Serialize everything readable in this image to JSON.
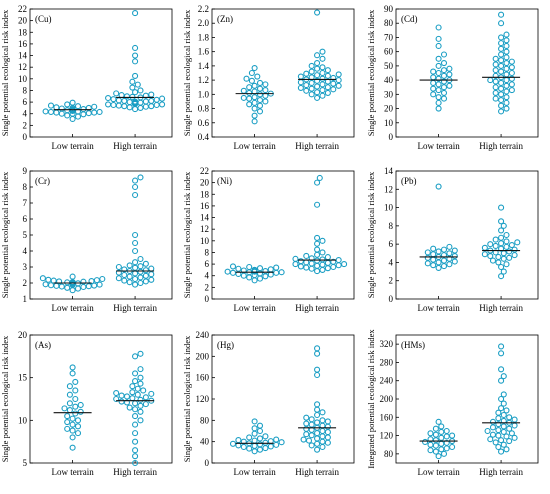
{
  "style": {
    "point_color": "#1a9ec4",
    "axis_color": "#000000"
  },
  "chart_data": [
    {
      "type": "scatter",
      "tag": "(Cu)",
      "ylabel": "Single potential ecological risk index",
      "categories": [
        "Low terrain",
        "High terrain"
      ],
      "ylim": [
        0,
        22
      ],
      "yticks": [
        0,
        2,
        4,
        6,
        8,
        10,
        12,
        14,
        16,
        18,
        20,
        22
      ],
      "means": [
        4.7,
        6.8
      ],
      "series": [
        {
          "values": [
            3.1,
            3.5,
            3.7,
            3.9,
            4.0,
            4.0,
            4.1,
            4.2,
            4.2,
            4.3,
            4.3,
            4.4,
            4.4,
            4.5,
            4.5,
            4.6,
            4.6,
            4.7,
            4.7,
            4.8,
            4.8,
            4.9,
            5.0,
            5.0,
            5.1,
            5.2,
            5.3,
            5.4,
            5.6,
            5.9
          ]
        },
        {
          "values": [
            4.8,
            5.0,
            5.1,
            5.2,
            5.3,
            5.3,
            5.4,
            5.5,
            5.5,
            5.6,
            5.6,
            5.7,
            5.7,
            5.8,
            5.8,
            5.9,
            5.9,
            6.0,
            6.0,
            6.1,
            6.1,
            6.2,
            6.2,
            6.3,
            6.4,
            6.5,
            6.6,
            6.7,
            6.8,
            6.9,
            7.0,
            7.1,
            7.2,
            7.3,
            7.5,
            7.7,
            8.0,
            8.5,
            9.0,
            9.5,
            10.5,
            13.0,
            14.0,
            15.3,
            21.3
          ]
        }
      ]
    },
    {
      "type": "scatter",
      "tag": "(Zn)",
      "ylabel": "Single potential ecological risk index",
      "categories": [
        "Low terrain",
        "High terrain"
      ],
      "ylim": [
        0.4,
        2.2
      ],
      "yticks": [
        0.4,
        0.6,
        0.8,
        1.0,
        1.2,
        1.4,
        1.6,
        1.8,
        2.0,
        2.2
      ],
      "means": [
        1.01,
        1.21
      ],
      "series": [
        {
          "values": [
            0.62,
            0.7,
            0.76,
            0.8,
            0.84,
            0.86,
            0.88,
            0.9,
            0.92,
            0.94,
            0.95,
            0.96,
            0.98,
            1.0,
            1.01,
            1.02,
            1.04,
            1.05,
            1.06,
            1.08,
            1.1,
            1.12,
            1.14,
            1.16,
            1.19,
            1.22,
            1.25,
            1.3,
            1.37
          ]
        },
        {
          "values": [
            0.95,
            0.98,
            1.0,
            1.02,
            1.03,
            1.05,
            1.06,
            1.07,
            1.08,
            1.09,
            1.1,
            1.11,
            1.12,
            1.13,
            1.14,
            1.15,
            1.16,
            1.17,
            1.18,
            1.19,
            1.2,
            1.21,
            1.22,
            1.23,
            1.24,
            1.25,
            1.26,
            1.27,
            1.28,
            1.29,
            1.3,
            1.32,
            1.34,
            1.36,
            1.38,
            1.4,
            1.44,
            1.5,
            1.55,
            1.6,
            2.15
          ]
        }
      ]
    },
    {
      "type": "scatter",
      "tag": "(Cd)",
      "ylabel": "Single potential ecological risk index",
      "categories": [
        "Low terrain",
        "High terrain"
      ],
      "ylim": [
        0,
        90
      ],
      "yticks": [
        0,
        10,
        20,
        30,
        40,
        50,
        60,
        70,
        80,
        90
      ],
      "means": [
        40,
        42
      ],
      "series": [
        {
          "values": [
            20,
            24,
            27,
            28,
            30,
            31,
            33,
            34,
            35,
            36,
            37,
            38,
            39,
            40,
            41,
            42,
            43,
            44,
            45,
            46,
            47,
            48,
            50,
            52,
            55,
            58,
            64,
            69,
            77
          ]
        },
        {
          "values": [
            18,
            20,
            22,
            24,
            26,
            27,
            28,
            30,
            31,
            32,
            33,
            34,
            35,
            36,
            37,
            38,
            39,
            40,
            40,
            41,
            42,
            43,
            44,
            45,
            46,
            47,
            48,
            49,
            50,
            51,
            52,
            53,
            54,
            55,
            56,
            58,
            60,
            62,
            64,
            66,
            68,
            70,
            72,
            80,
            86
          ]
        }
      ]
    },
    {
      "type": "scatter",
      "tag": "(Cr)",
      "ylabel": "Single potential ecological risk index",
      "categories": [
        "Low terrain",
        "High terrain"
      ],
      "ylim": [
        1,
        9
      ],
      "yticks": [
        1,
        2,
        3,
        4,
        5,
        6,
        7,
        8,
        9
      ],
      "means": [
        2.0,
        2.75
      ],
      "series": [
        {
          "values": [
            1.55,
            1.65,
            1.7,
            1.75,
            1.78,
            1.8,
            1.82,
            1.84,
            1.86,
            1.88,
            1.9,
            1.92,
            1.94,
            1.96,
            1.98,
            2.0,
            2.02,
            2.04,
            2.06,
            2.08,
            2.1,
            2.12,
            2.15,
            2.18,
            2.2,
            2.25,
            2.3,
            2.4
          ]
        },
        {
          "values": [
            1.9,
            2.0,
            2.05,
            2.1,
            2.15,
            2.2,
            2.25,
            2.3,
            2.35,
            2.4,
            2.45,
            2.5,
            2.55,
            2.6,
            2.65,
            2.7,
            2.75,
            2.8,
            2.85,
            2.9,
            2.95,
            3.0,
            3.05,
            3.1,
            3.2,
            3.3,
            3.5,
            4.0,
            4.5,
            5.0,
            7.5,
            8.0,
            8.4,
            8.6
          ]
        }
      ]
    },
    {
      "type": "scatter",
      "tag": "(Ni)",
      "ylabel": "Single potential ecological risk index",
      "categories": [
        "Low terrain",
        "High terrain"
      ],
      "ylim": [
        0,
        22
      ],
      "yticks": [
        0,
        2,
        4,
        6,
        8,
        10,
        12,
        14,
        16,
        18,
        20,
        22
      ],
      "means": [
        4.6,
        6.7
      ],
      "series": [
        {
          "values": [
            3.2,
            3.5,
            3.7,
            3.9,
            4.0,
            4.1,
            4.2,
            4.3,
            4.4,
            4.5,
            4.5,
            4.6,
            4.6,
            4.7,
            4.7,
            4.8,
            4.8,
            4.9,
            5.0,
            5.0,
            5.1,
            5.2,
            5.3,
            5.4,
            5.5,
            5.6
          ]
        },
        {
          "values": [
            4.8,
            5.0,
            5.2,
            5.3,
            5.4,
            5.5,
            5.6,
            5.7,
            5.8,
            5.9,
            6.0,
            6.0,
            6.1,
            6.2,
            6.3,
            6.4,
            6.5,
            6.6,
            6.7,
            6.8,
            6.9,
            7.0,
            7.2,
            7.4,
            7.6,
            8.0,
            8.5,
            9.5,
            10.0,
            10.5,
            16.2,
            20.0,
            20.8
          ]
        }
      ]
    },
    {
      "type": "scatter",
      "tag": "(Pb)",
      "ylabel": "Single potential ecological risk index",
      "categories": [
        "Low terrain",
        "High terrain"
      ],
      "ylim": [
        0,
        14
      ],
      "yticks": [
        0,
        2,
        4,
        6,
        8,
        10,
        12,
        14
      ],
      "means": [
        4.6,
        5.3
      ],
      "series": [
        {
          "values": [
            3.4,
            3.6,
            3.7,
            3.8,
            3.9,
            4.0,
            4.1,
            4.2,
            4.3,
            4.4,
            4.5,
            4.6,
            4.7,
            4.8,
            4.9,
            5.0,
            5.1,
            5.2,
            5.3,
            5.4,
            5.5,
            5.7,
            12.3
          ]
        },
        {
          "values": [
            2.5,
            3.0,
            3.5,
            3.8,
            4.0,
            4.2,
            4.4,
            4.5,
            4.6,
            4.7,
            4.8,
            4.9,
            5.0,
            5.1,
            5.2,
            5.3,
            5.4,
            5.5,
            5.6,
            5.7,
            5.8,
            5.9,
            6.0,
            6.1,
            6.2,
            6.3,
            6.5,
            6.7,
            7.0,
            7.5,
            8.0,
            8.5,
            10.0
          ]
        }
      ]
    },
    {
      "type": "scatter",
      "tag": "(As)",
      "ylabel": "Single potential ecological risk index",
      "categories": [
        "Low terrain",
        "High terrain"
      ],
      "ylim": [
        5,
        20
      ],
      "yticks": [
        5,
        10,
        15,
        20
      ],
      "means": [
        10.9,
        12.3
      ],
      "series": [
        {
          "values": [
            6.8,
            8.0,
            8.5,
            8.8,
            9.0,
            9.3,
            9.5,
            9.8,
            10.0,
            10.2,
            10.5,
            10.8,
            11.0,
            11.2,
            11.4,
            11.6,
            11.8,
            12.0,
            12.5,
            13.0,
            13.5,
            14.0,
            14.5,
            15.5,
            16.2
          ]
        },
        {
          "values": [
            5.0,
            5.8,
            6.5,
            7.5,
            8.5,
            9.5,
            10.0,
            10.5,
            11.0,
            11.3,
            11.5,
            11.7,
            11.9,
            12.0,
            12.1,
            12.2,
            12.3,
            12.4,
            12.5,
            12.6,
            12.7,
            12.8,
            12.9,
            13.0,
            13.1,
            13.2,
            13.3,
            13.5,
            13.7,
            14.0,
            14.3,
            14.6,
            15.0,
            15.5,
            16.0,
            17.5,
            17.8
          ]
        }
      ]
    },
    {
      "type": "scatter",
      "tag": "(Hg)",
      "ylabel": "Single potential ecological risk index",
      "categories": [
        "Low terrain",
        "High terrain"
      ],
      "ylim": [
        0,
        240
      ],
      "yticks": [
        0,
        40,
        80,
        120,
        160,
        200,
        240
      ],
      "means": [
        37,
        66
      ],
      "series": [
        {
          "values": [
            22,
            25,
            27,
            28,
            30,
            31,
            32,
            33,
            34,
            35,
            36,
            37,
            38,
            39,
            40,
            41,
            42,
            43,
            44,
            46,
            48,
            50,
            55,
            60,
            65,
            70,
            78
          ]
        },
        {
          "values": [
            25,
            30,
            33,
            36,
            38,
            40,
            42,
            44,
            46,
            48,
            50,
            52,
            54,
            56,
            58,
            60,
            62,
            64,
            66,
            68,
            70,
            72,
            74,
            76,
            78,
            80,
            82,
            85,
            90,
            95,
            100,
            110,
            165,
            175,
            205,
            215
          ]
        }
      ]
    },
    {
      "type": "scatter",
      "tag": "(HMs)",
      "ylabel": "Integrated potential ecological risk index",
      "categories": [
        "Low terrain",
        "High terrain"
      ],
      "ylim": [
        60,
        340
      ],
      "yticks": [
        80,
        120,
        160,
        200,
        240,
        280,
        320
      ],
      "means": [
        108,
        148
      ],
      "series": [
        {
          "values": [
            75,
            80,
            85,
            88,
            90,
            92,
            95,
            98,
            100,
            102,
            104,
            106,
            108,
            110,
            112,
            115,
            118,
            120,
            122,
            125,
            128,
            130,
            135,
            140,
            150
          ]
        },
        {
          "values": [
            85,
            90,
            95,
            100,
            105,
            108,
            110,
            112,
            115,
            118,
            120,
            122,
            125,
            128,
            130,
            132,
            135,
            138,
            140,
            142,
            145,
            148,
            150,
            152,
            155,
            158,
            160,
            165,
            170,
            175,
            180,
            190,
            200,
            210,
            240,
            250,
            265,
            300,
            315
          ]
        }
      ]
    }
  ]
}
